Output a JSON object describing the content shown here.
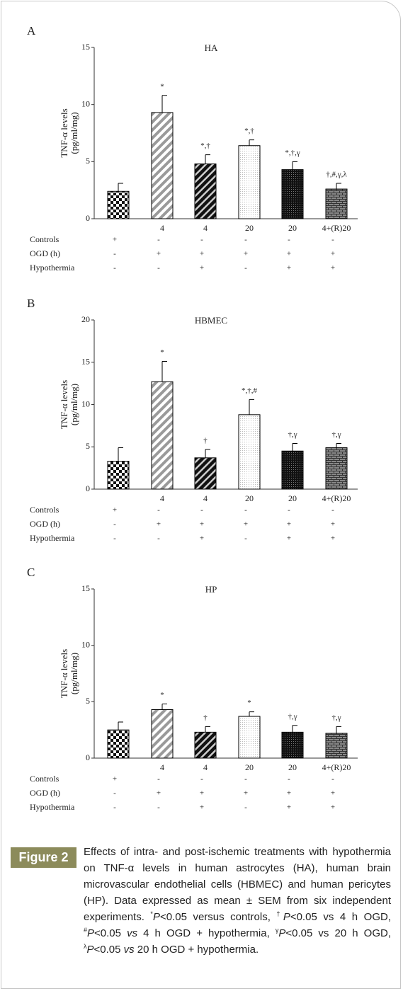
{
  "chart_data": [
    {
      "type": "bar",
      "panel": "A",
      "title": "HA",
      "ylabel": [
        "TNF-α levels",
        "(pg/ml/mg)"
      ],
      "categories": [
        null,
        "4",
        "4",
        "20",
        "20",
        "4+(R)20"
      ],
      "values": [
        2.4,
        9.3,
        4.8,
        6.4,
        4.3,
        2.6
      ],
      "errors": [
        0.7,
        1.5,
        0.8,
        0.5,
        0.7,
        0.5
      ],
      "annotations": [
        null,
        "*",
        "*,†",
        "*,†",
        "*,†,γ",
        "†,#,γ,λ"
      ],
      "rows": [
        {
          "label": "Controls",
          "values": [
            "+",
            "-",
            "-",
            "-",
            "-",
            "-"
          ]
        },
        {
          "label": "OGD (h)",
          "values": [
            "-",
            "+",
            "+",
            "+",
            "+",
            "+"
          ]
        },
        {
          "label": "Hypothermia",
          "values": [
            "-",
            "-",
            "+",
            "-",
            "+",
            "+"
          ]
        }
      ],
      "ylim": [
        0,
        15
      ],
      "yticks": [
        0,
        5,
        10,
        15
      ],
      "color": "#000000"
    },
    {
      "type": "bar",
      "panel": "B",
      "title": "HBMEC",
      "ylabel": [
        "TNF-α levels",
        "(pg/ml/mg)"
      ],
      "categories": [
        null,
        "4",
        "4",
        "20",
        "20",
        "4+(R)20"
      ],
      "values": [
        3.3,
        12.7,
        3.7,
        8.8,
        4.5,
        4.9
      ],
      "errors": [
        1.6,
        2.4,
        1.0,
        1.8,
        0.9,
        0.5
      ],
      "annotations": [
        null,
        "*",
        "†",
        "*,†,#",
        "†,γ",
        "†,γ"
      ],
      "rows": [
        {
          "label": "Controls",
          "values": [
            "+",
            "-",
            "-",
            "-",
            "-",
            "-"
          ]
        },
        {
          "label": "OGD (h)",
          "values": [
            "-",
            "+",
            "+",
            "+",
            "+",
            "+"
          ]
        },
        {
          "label": "Hypothermia",
          "values": [
            "-",
            "-",
            "+",
            "-",
            "+",
            "+"
          ]
        }
      ],
      "ylim": [
        0,
        20
      ],
      "yticks": [
        0,
        5,
        10,
        15,
        20
      ],
      "color": "#000000"
    },
    {
      "type": "bar",
      "panel": "C",
      "title": "HP",
      "ylabel": [
        "TNF-α levels",
        "(pg/ml/mg)"
      ],
      "categories": [
        null,
        "4",
        "4",
        "20",
        "20",
        "4+(R)20"
      ],
      "values": [
        2.5,
        4.3,
        2.3,
        3.7,
        2.3,
        2.2
      ],
      "errors": [
        0.7,
        0.5,
        0.5,
        0.4,
        0.6,
        0.6
      ],
      "annotations": [
        null,
        "*",
        "†",
        "*",
        "†,γ",
        "†,γ"
      ],
      "rows": [
        {
          "label": "Controls",
          "values": [
            "+",
            "-",
            "-",
            "-",
            "-",
            "-"
          ]
        },
        {
          "label": "OGD (h)",
          "values": [
            "-",
            "+",
            "+",
            "+",
            "+",
            "+"
          ]
        },
        {
          "label": "Hypothermia",
          "values": [
            "-",
            "-",
            "+",
            "-",
            "+",
            "+"
          ]
        }
      ],
      "ylim": [
        0,
        15
      ],
      "yticks": [
        0,
        5,
        10,
        15
      ],
      "color": "#000000"
    }
  ],
  "caption": {
    "label": "Figure 2",
    "parts": [
      "Effects of intra- and post-ischemic treatments with hypothermia on TNF-α levels in human astrocytes (HA), human brain microvascular endothelial cells (HBMEC) and human pericytes (HP). Data expressed as mean ± SEM from six independent experiments. ",
      "*",
      "P",
      "<0.05 versus controls, ",
      "†",
      "P",
      "<0.05 vs 4 h OGD, ",
      "#",
      "P",
      "<0.05 ",
      "vs",
      " 4 h OGD + hypothermia, ",
      "γ",
      "P",
      "<0.05 vs 20 h OGD, ",
      "λ",
      "P",
      "<0.05 ",
      "vs",
      " 20 h OGD + hypothermia."
    ]
  }
}
